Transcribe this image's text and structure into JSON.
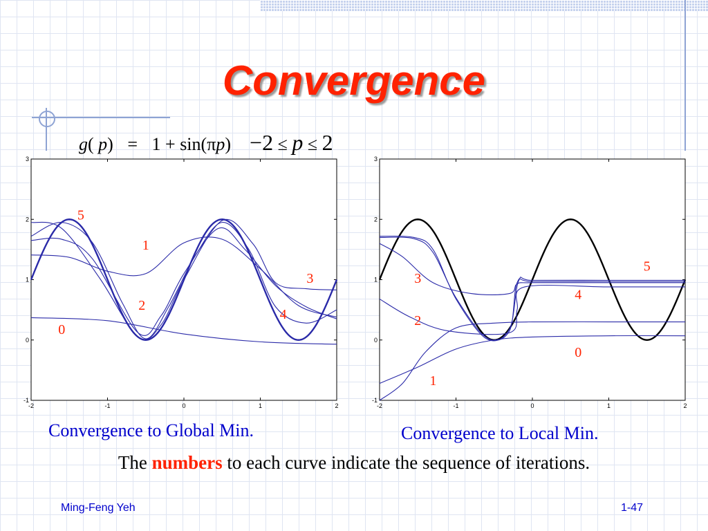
{
  "slide": {
    "title": "Convergence",
    "formula": {
      "lhs_fn": "g",
      "lhs_var": "p",
      "rhs_const": "1",
      "plus": "+",
      "sin": "sin",
      "pi": "π",
      "var": "p",
      "minus": "−",
      "low": "2",
      "le": "≤",
      "high": "2"
    },
    "caption_left": "Convergence to Global Min.",
    "caption_right": "Convergence to Local Min.",
    "note": {
      "pre": "The ",
      "highlight": "numbers",
      "post": " to each curve indicate the sequence of iterations."
    },
    "footer": {
      "author": "Ming-Feng Yeh",
      "page": "1-47"
    }
  },
  "colors": {
    "title": "#ff2200",
    "curve_number": "#ff2200",
    "network_curve": "#2a2aa8",
    "target_curve": "#000000",
    "caption": "#0000cc"
  },
  "chart_data": [
    {
      "type": "line",
      "function": "g(p) = 1 + sin(pi*p)",
      "x_range": [
        -2,
        2
      ],
      "xlim": [
        -2,
        2
      ],
      "ylim": [
        -1,
        3
      ],
      "x_ticks": [
        "-2",
        "-1",
        "0",
        "1",
        "2"
      ],
      "y_ticks": [
        "-1",
        "0",
        "1",
        "2",
        "3"
      ],
      "grid": false,
      "target_color": "#2a2aa8",
      "iteration_labels": [
        {
          "label": "0",
          "x": -1.6,
          "y": 0.1
        },
        {
          "label": "1",
          "x": -0.5,
          "y": 1.5
        },
        {
          "label": "2",
          "x": -0.55,
          "y": 0.5
        },
        {
          "label": "3",
          "x": 1.65,
          "y": 0.95
        },
        {
          "label": "4",
          "x": 1.3,
          "y": 0.35
        },
        {
          "label": "5",
          "x": -1.35,
          "y": 2.0
        }
      ],
      "iterations": [
        {
          "label": "0",
          "x": [
            -2,
            -1,
            0,
            1,
            2
          ],
          "y": [
            0.37,
            0.32,
            0.1,
            -0.03,
            -0.07
          ]
        },
        {
          "label": "1",
          "x": [
            -2,
            -1.5,
            -1,
            -0.5,
            0,
            0.5,
            1,
            1.5,
            2
          ],
          "y": [
            1.41,
            1.37,
            1.14,
            1.1,
            1.61,
            1.67,
            1.18,
            0.57,
            0.38
          ]
        },
        {
          "label": "2",
          "x": [
            -2,
            -1.6,
            -1.2,
            -0.6,
            -0.3,
            0,
            0.45,
            0.8,
            1.2,
            1.6,
            2
          ],
          "y": [
            1.65,
            1.67,
            1.35,
            0.12,
            0.4,
            1.1,
            1.85,
            1.5,
            0.9,
            0.55,
            0.35
          ]
        },
        {
          "label": "3",
          "x": [
            -2,
            -1.6,
            -1.1,
            -0.6,
            -0.3,
            0,
            0.5,
            0.9,
            1.2,
            1.6,
            2
          ],
          "y": [
            1.95,
            1.85,
            1.02,
            0.05,
            0.25,
            1.0,
            1.98,
            1.6,
            0.95,
            0.85,
            0.83
          ]
        },
        {
          "label": "4",
          "x": [
            -2,
            -1.6,
            -1.2,
            -0.8,
            -0.5,
            -0.2,
            0.15,
            0.5,
            0.85,
            1.2,
            1.6,
            2
          ],
          "y": [
            1.72,
            1.95,
            1.62,
            0.6,
            0.02,
            0.55,
            1.4,
            1.95,
            1.5,
            0.55,
            0.28,
            0.5
          ]
        }
      ]
    },
    {
      "type": "line",
      "function": "g(p) = 1 + sin(pi*p)",
      "x_range": [
        -2,
        2
      ],
      "xlim": [
        -2,
        2
      ],
      "ylim": [
        -1,
        3
      ],
      "x_ticks": [
        "-2",
        "-1",
        "0",
        "1",
        "2"
      ],
      "y_ticks": [
        "-1",
        "0",
        "1",
        "2",
        "3"
      ],
      "grid": false,
      "target_color": "#000000",
      "iteration_labels": [
        {
          "label": "0",
          "x": 0.6,
          "y": -0.28
        },
        {
          "label": "1",
          "x": -1.3,
          "y": -0.75
        },
        {
          "label": "2",
          "x": -1.5,
          "y": 0.25
        },
        {
          "label": "3",
          "x": -1.5,
          "y": 0.95
        },
        {
          "label": "4",
          "x": 0.6,
          "y": 0.68
        },
        {
          "label": "5",
          "x": 1.5,
          "y": 1.15
        }
      ],
      "iterations": [
        {
          "label": "0",
          "x": [
            -2,
            -1.5,
            -1,
            -0.5,
            0,
            1,
            2
          ],
          "y": [
            -0.72,
            -0.45,
            -0.15,
            0.0,
            0.05,
            0.07,
            0.07
          ]
        },
        {
          "label": "1",
          "x": [
            -2,
            -1.7,
            -1.4,
            -1,
            -0.5,
            0,
            1,
            2
          ],
          "y": [
            -1.0,
            -0.72,
            -0.2,
            0.2,
            0.28,
            0.3,
            0.3,
            0.3
          ]
        },
        {
          "label": "2",
          "x": [
            -2,
            -1.6,
            -1.1,
            -0.3,
            -0.2,
            -0.1,
            1,
            2
          ],
          "y": [
            0.68,
            0.38,
            0.15,
            0.12,
            0.5,
            0.88,
            0.88,
            0.88
          ]
        },
        {
          "label": "3",
          "x": [
            -2,
            -1.7,
            -1.3,
            -0.8,
            -0.3,
            -0.2,
            0,
            1,
            2
          ],
          "y": [
            1.6,
            1.38,
            0.95,
            0.77,
            0.77,
            0.93,
            0.95,
            0.95,
            0.95
          ]
        },
        {
          "label": "4",
          "x": [
            -2,
            -1.55,
            -1.3,
            -1,
            -0.6,
            -0.3,
            -0.2,
            0,
            1,
            2
          ],
          "y": [
            1.7,
            1.68,
            1.45,
            0.7,
            0.04,
            0.15,
            0.95,
            0.97,
            0.97,
            0.97
          ]
        },
        {
          "label": "5",
          "x": [
            -2,
            -1.55,
            -1.3,
            -1,
            -0.6,
            -0.3,
            -0.18,
            0,
            1,
            2
          ],
          "y": [
            1.72,
            1.7,
            1.5,
            0.68,
            0.02,
            0.18,
            0.98,
            0.99,
            0.99,
            0.99
          ]
        }
      ]
    }
  ]
}
